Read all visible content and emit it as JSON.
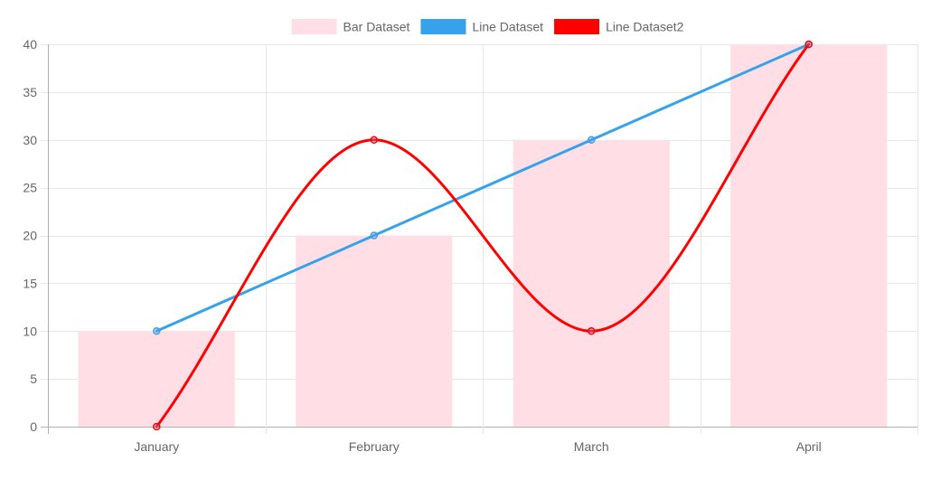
{
  "chart_data": {
    "type": "bar",
    "title": "",
    "xlabel": "",
    "ylabel": "",
    "categories": [
      "January",
      "February",
      "March",
      "April"
    ],
    "ylim": [
      0,
      40
    ],
    "yticks": [
      0,
      5,
      10,
      15,
      20,
      25,
      30,
      35,
      40
    ],
    "grid": true,
    "legend_position": "top",
    "series": [
      {
        "name": "Bar Dataset",
        "type": "bar",
        "values": [
          10,
          20,
          30,
          40
        ],
        "color": "#FFDFE5"
      },
      {
        "name": "Line Dataset",
        "type": "line",
        "values": [
          10,
          20,
          30,
          40
        ],
        "color": "#36A2EB",
        "smooth": false
      },
      {
        "name": "Line Dataset2",
        "type": "line",
        "values": [
          0,
          30,
          10,
          40
        ],
        "color": "#FF0000",
        "smooth": true
      }
    ]
  }
}
